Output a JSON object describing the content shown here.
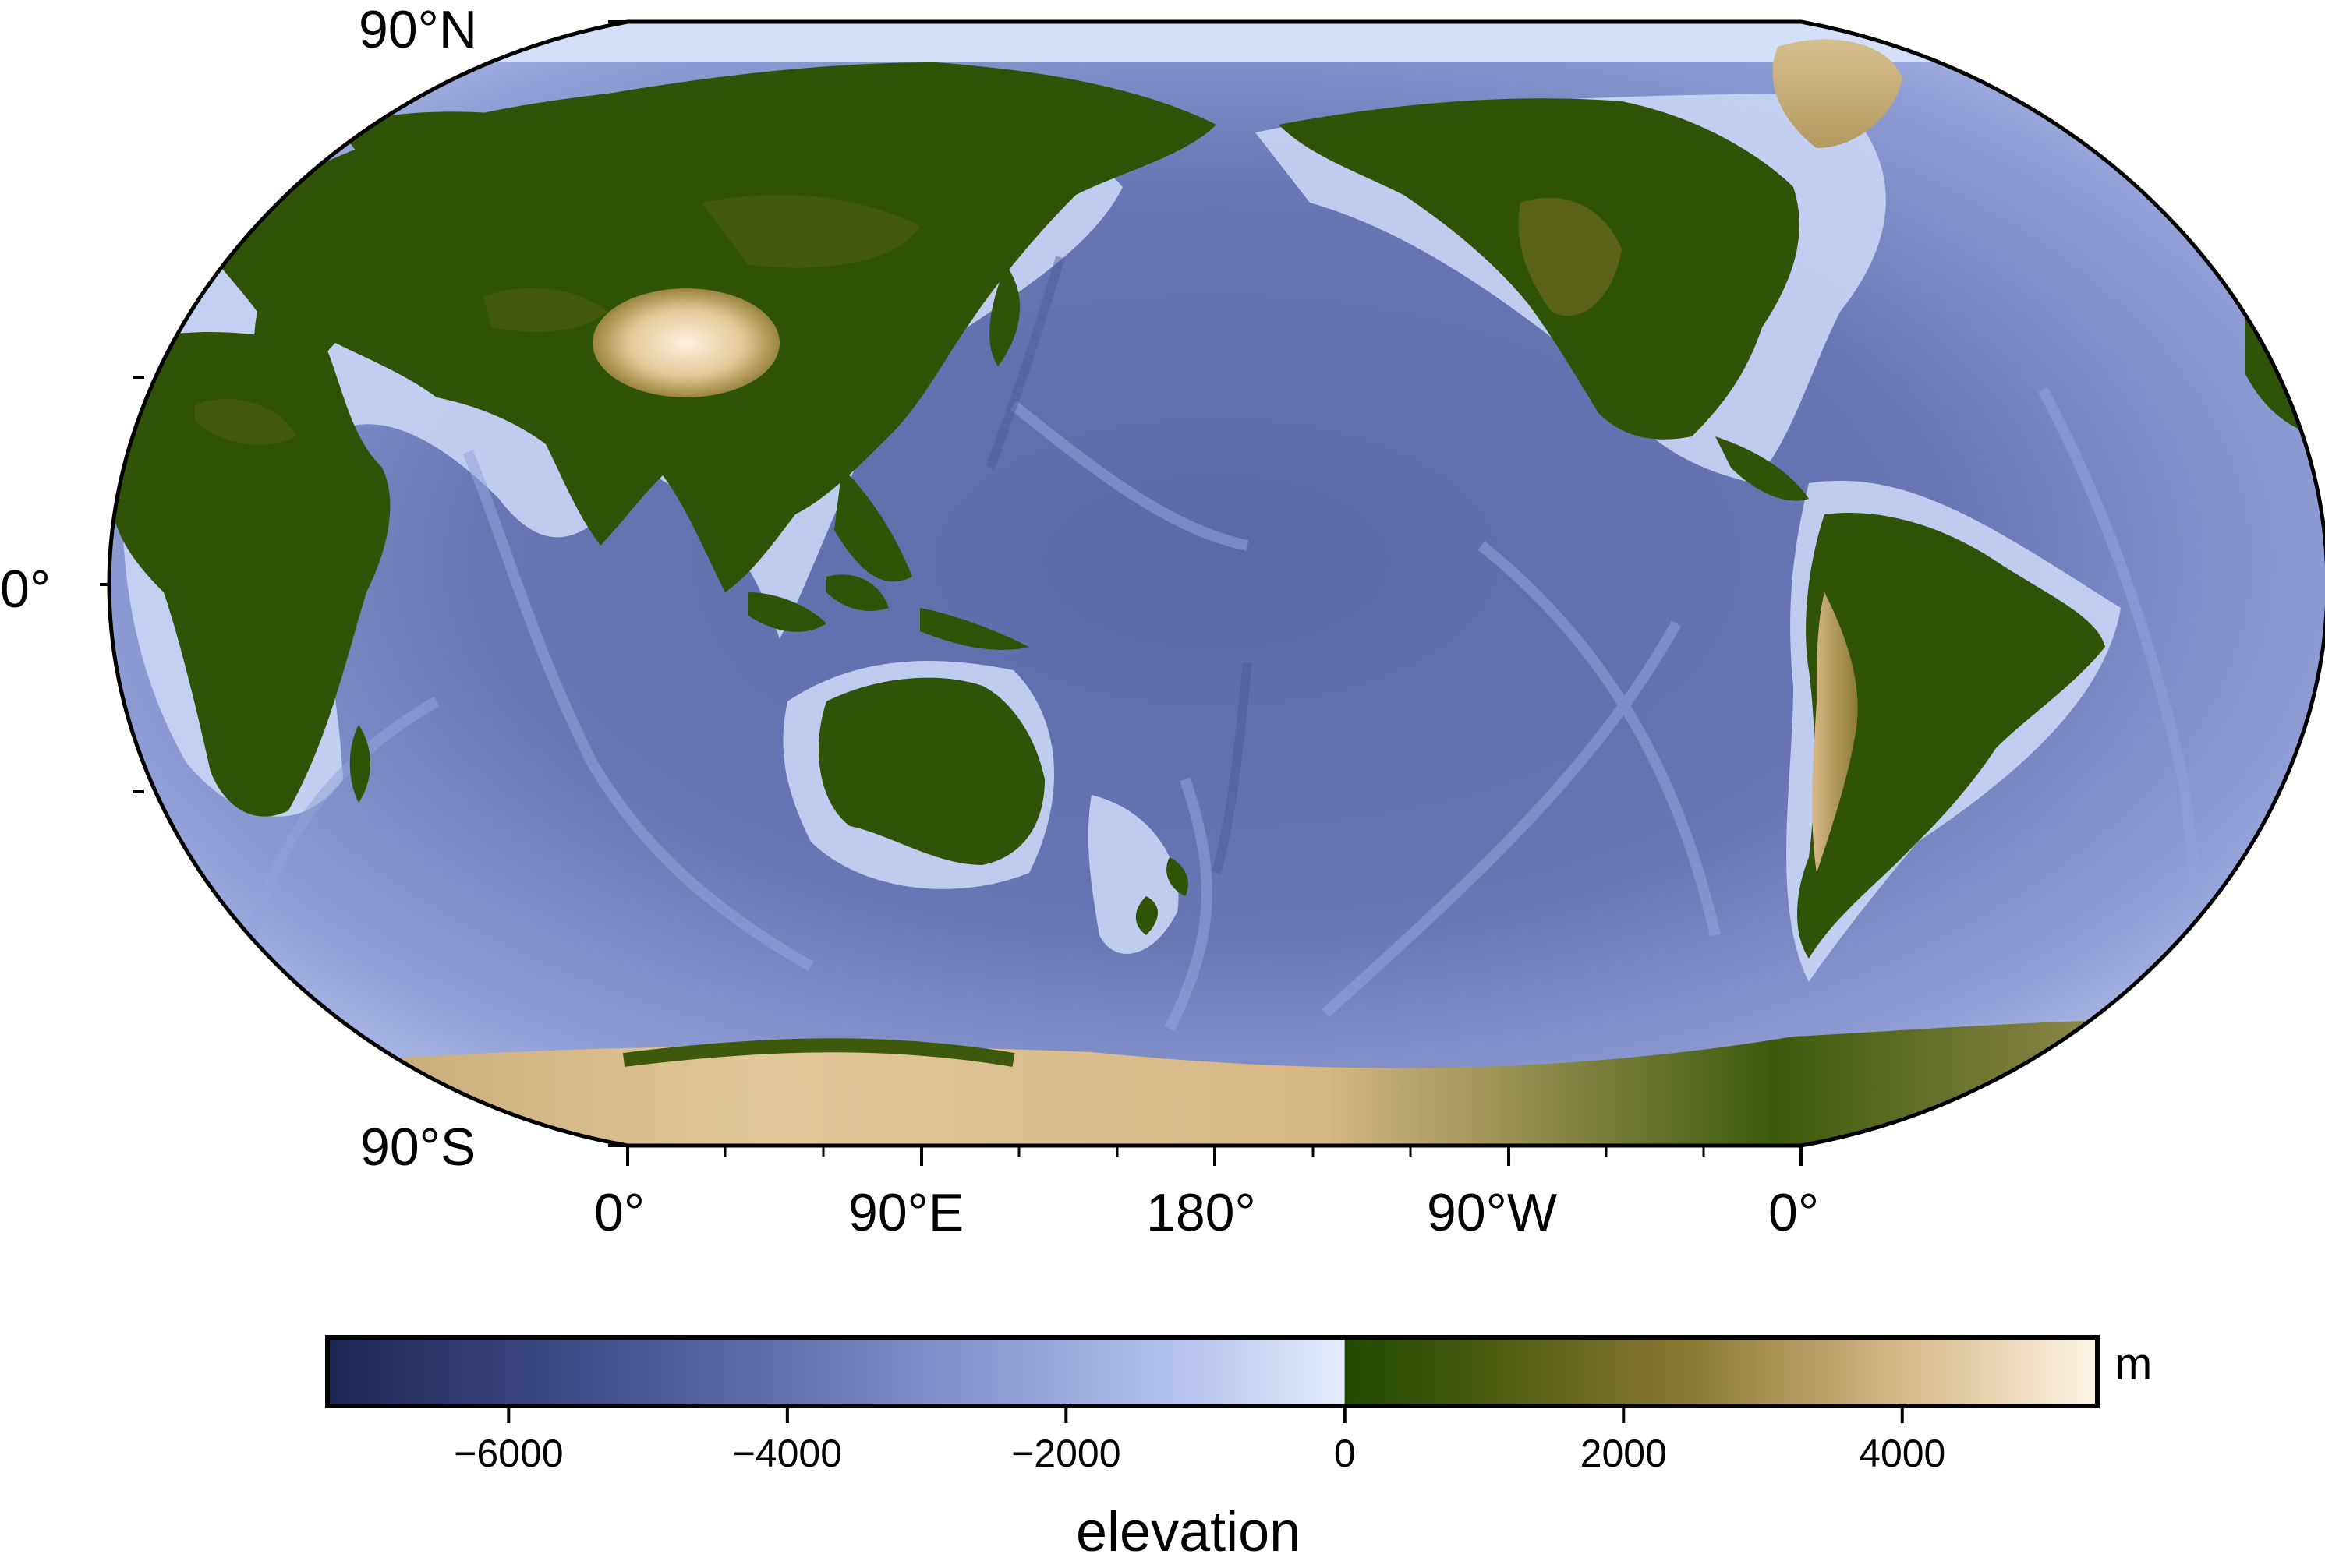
{
  "map": {
    "projection": "robinson",
    "central_meridian": "180°",
    "lat_labels": [
      "90°N",
      "0°",
      "90°S"
    ],
    "lon_labels": [
      "0°",
      "90°E",
      "180°",
      "90°W",
      "0°"
    ],
    "ocean_colors": [
      "#1c2553",
      "#4a5896",
      "#7d8dc6",
      "#b4c2ee",
      "#dbe6fb"
    ],
    "land_colors": [
      "#204d00",
      "#4a5b10",
      "#8c7a34",
      "#d0b27c",
      "#faf1de"
    ],
    "features": [
      "Eurasia",
      "Africa",
      "Australia",
      "North America",
      "South America",
      "Greenland",
      "Antarctica",
      "Tibetan Plateau",
      "Andes"
    ]
  },
  "colorbar": {
    "title": "elevation",
    "unit": "m",
    "min": -7300,
    "max": 5400,
    "ticks": [
      "−6000",
      "−4000",
      "−2000",
      "0",
      "2000",
      "4000"
    ],
    "tick_values": [
      -6000,
      -4000,
      -2000,
      0,
      2000,
      4000
    ],
    "stops": [
      {
        "value": -7300,
        "color": "#1c2553"
      },
      {
        "value": -5000,
        "color": "#4a5896"
      },
      {
        "value": -3000,
        "color": "#7d8dc6"
      },
      {
        "value": -1200,
        "color": "#b4c2ee"
      },
      {
        "value": -1,
        "color": "#e4ecfb"
      },
      {
        "value": 0,
        "color": "#1f4b00"
      },
      {
        "value": 1000,
        "color": "#4a5b10"
      },
      {
        "value": 2500,
        "color": "#8c7a34"
      },
      {
        "value": 4000,
        "color": "#d8b888"
      },
      {
        "value": 5400,
        "color": "#fcf5e4"
      }
    ]
  }
}
